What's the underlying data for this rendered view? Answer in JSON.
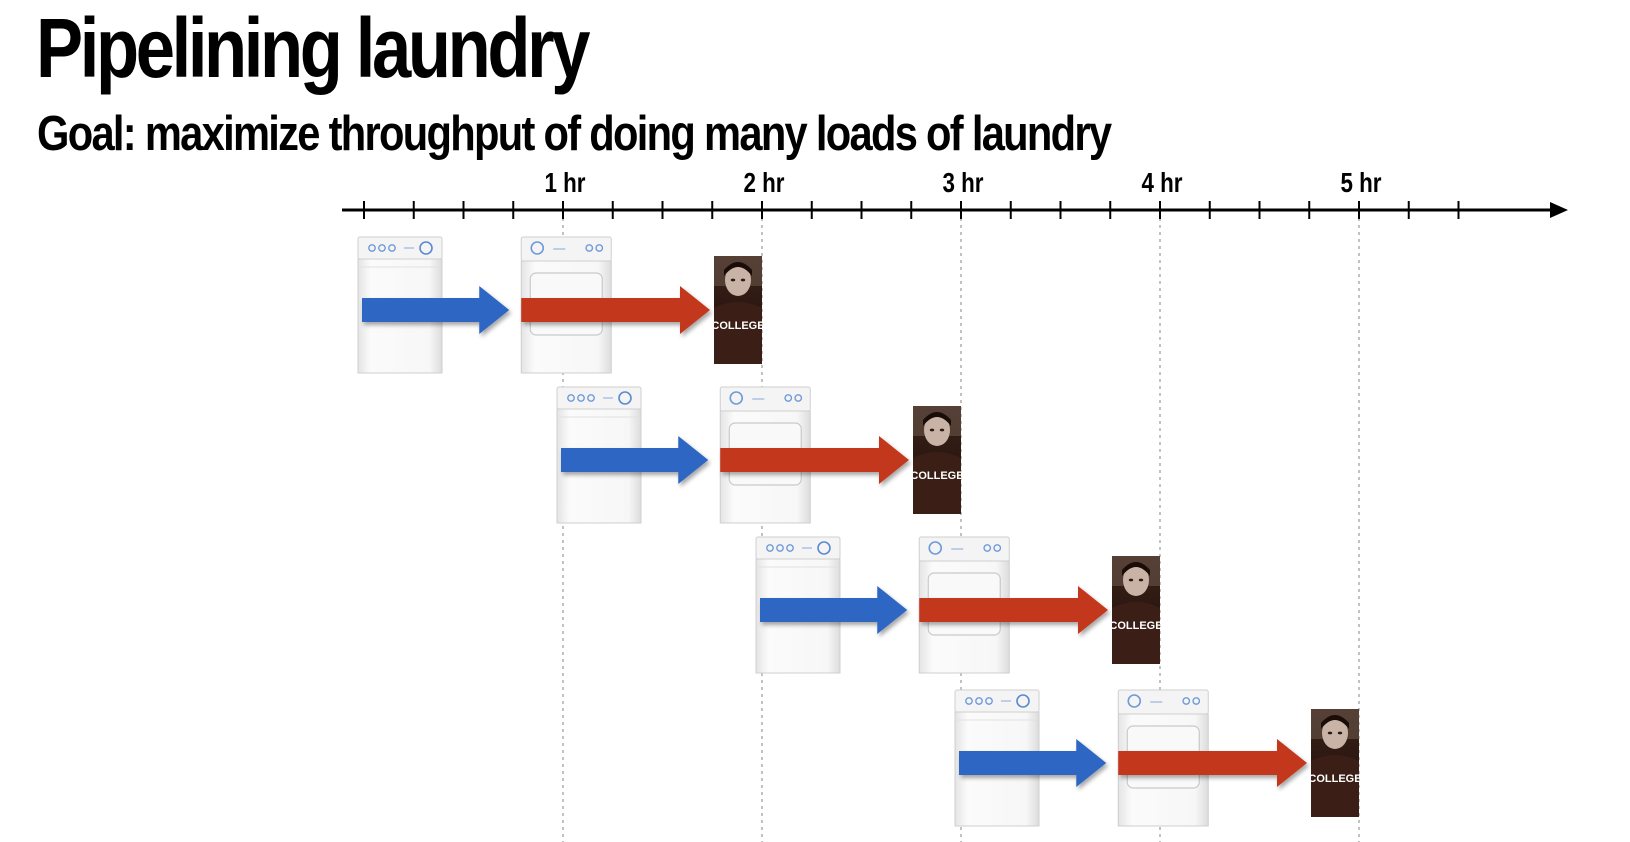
{
  "title": "Pipelining laundry",
  "subtitle": "Goal: maximize throughput of doing many loads of laundry",
  "timeline": {
    "ticks_per_hour": 4,
    "total_ticks": 23,
    "hour_labels": [
      "1 hr",
      "2 hr",
      "3 hr",
      "4 hr",
      "5 hr"
    ]
  },
  "loads": [
    {
      "wash_start_hr": 0,
      "wash_end_hr": 0.75,
      "dry_end_hr": 2.0,
      "person_label": "COLLEGE"
    },
    {
      "wash_start_hr": 1.0,
      "wash_end_hr": 1.75,
      "dry_end_hr": 3.0,
      "person_label": "COLLEGE"
    },
    {
      "wash_start_hr": 2.0,
      "wash_end_hr": 2.75,
      "dry_end_hr": 4.0,
      "person_label": "COLLEGE"
    },
    {
      "wash_start_hr": 3.0,
      "wash_end_hr": 3.75,
      "dry_end_hr": 5.0,
      "person_label": "COLLEGE"
    }
  ],
  "colors": {
    "wash_arrow": "#2f66c4",
    "dry_arrow": "#c3391f",
    "person_bg": "#2b1710",
    "person_text": "#ffffff"
  },
  "icons": {
    "washer": "washing-machine-icon",
    "dryer": "dryer-icon",
    "person": "person-photo-icon"
  }
}
